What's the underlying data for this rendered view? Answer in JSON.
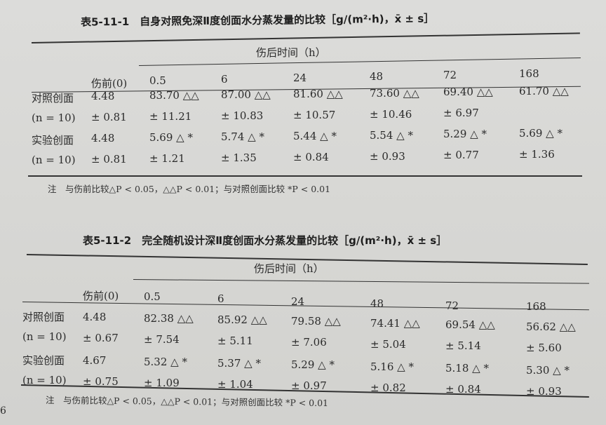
{
  "tables": [
    {
      "title": "表5-11-1　自身对照免深Ⅱ度创面水分蒸发量的比较［g/(m²·h)，x̄ ± s］",
      "group_header": "伤后时间（h）",
      "columns": [
        "",
        "伤前(0)",
        "0.5",
        "6",
        "24",
        "48",
        "72",
        "168"
      ],
      "rows": [
        [
          "对照创面",
          "4.48",
          "83.70 △△",
          "87.00 △△",
          "81.60 △△",
          "73.60 △△",
          "69.40 △△",
          "61.70 △△"
        ],
        [
          "(n = 10)",
          "± 0.81",
          "± 11.21",
          "± 10.83",
          "± 10.57",
          "± 10.46",
          "± 6.97",
          ""
        ],
        [
          "实验创面",
          "4.48",
          "5.69 △ *",
          "5.74 △ *",
          "5.44 △ *",
          "5.54 △ *",
          "5.29 △ *",
          "5.69 △ *"
        ],
        [
          "(n = 10)",
          "± 0.81",
          "± 1.21",
          "± 1.35",
          "± 0.84",
          "± 0.93",
          "± 0.77",
          "± 1.36"
        ]
      ],
      "note": "注　与伤前比较△P < 0.05，△△P < 0.01；与对照创面比较 *P < 0.01"
    },
    {
      "title": "表5-11-2　完全随机设计深Ⅱ度创面水分蒸发量的比较［g/(m²·h)，x̄ ± s］",
      "group_header": "伤后时间（h）",
      "columns": [
        "",
        "伤前(0)",
        "0.5",
        "6",
        "24",
        "48",
        "72",
        "168"
      ],
      "rows": [
        [
          "对照创面",
          "4.48",
          "82.38 △△",
          "85.92 △△",
          "79.58 △△",
          "74.41 △△",
          "69.54 △△",
          "56.62 △△"
        ],
        [
          "(n = 10)",
          "± 0.67",
          "± 7.54",
          "± 5.11",
          "± 7.06",
          "± 5.04",
          "± 5.14",
          "± 5.60"
        ],
        [
          "实验创面",
          "4.67",
          "5.32 △ *",
          "5.37 △ *",
          "5.29 △ *",
          "5.16 △ *",
          "5.18 △ *",
          "5.30 △ *"
        ],
        [
          "(n = 10)",
          "± 0.75",
          "± 1.09",
          "± 1.04",
          "± 0.97",
          "± 0.82",
          "± 0.84",
          "± 0.93"
        ]
      ],
      "note": "注　与伤前比较△P < 0.05，△△P < 0.01；与对照创面比较 *P < 0.01"
    }
  ],
  "page_number_fragment": "6"
}
